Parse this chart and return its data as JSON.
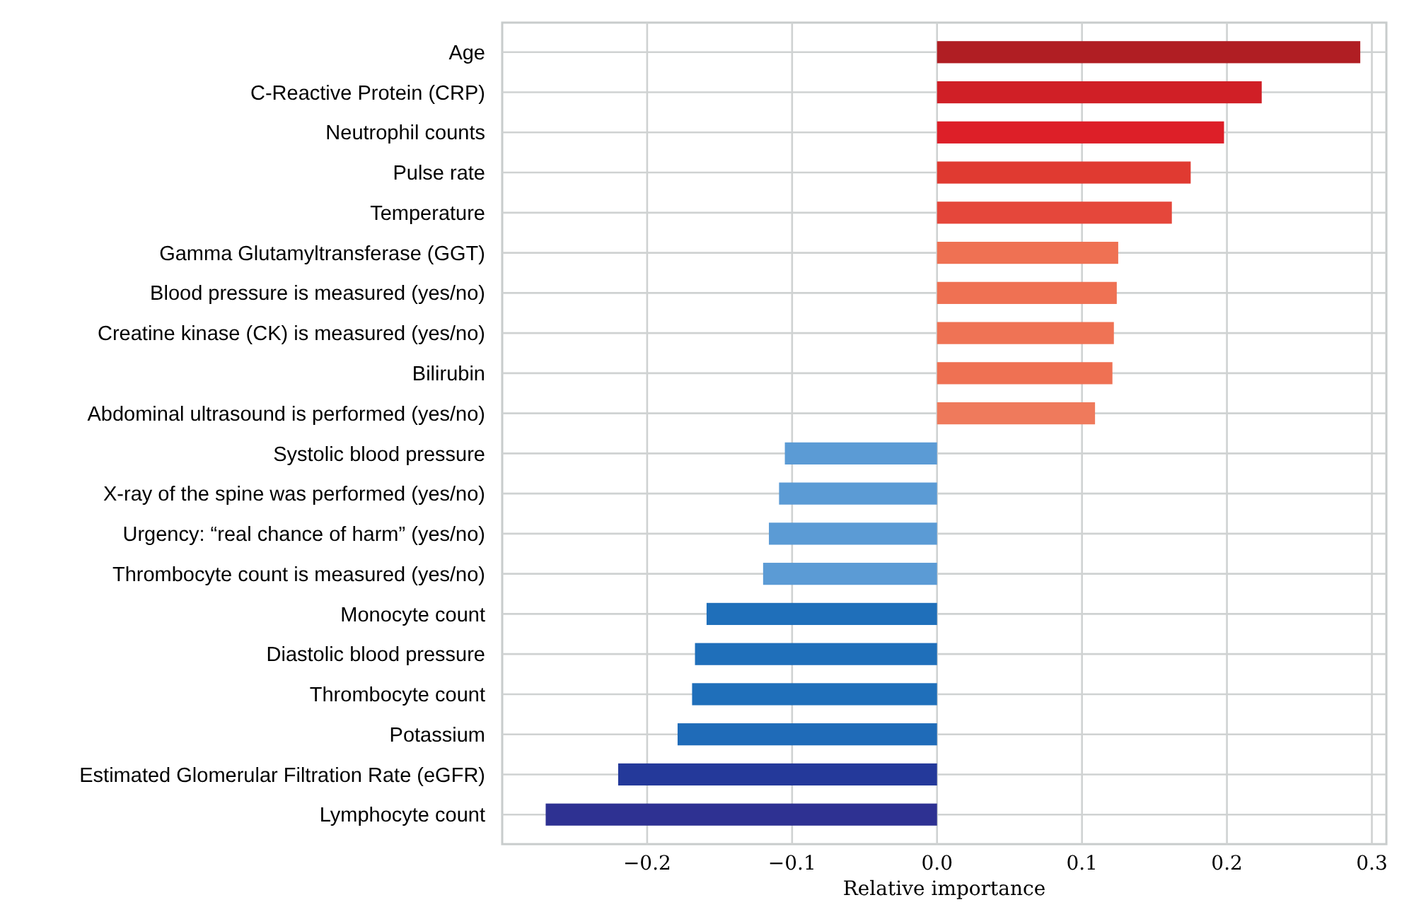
{
  "chart_data": {
    "type": "bar",
    "orientation": "horizontal",
    "xlabel": "Relative importance",
    "categories": [
      "Age",
      "C-Reactive Protein (CRP)",
      "Neutrophil counts",
      "Pulse rate",
      "Temperature",
      "Gamma Glutamyltransferase (GGT)",
      "Blood pressure is measured (yes/no)",
      "Creatine kinase (CK) is measured (yes/no)",
      "Bilirubin",
      "Abdominal ultrasound is performed (yes/no)",
      "Systolic blood pressure",
      "X-ray of the spine was performed (yes/no)",
      "Urgency: “real chance of harm” (yes/no)",
      "Thrombocyte count is measured (yes/no)",
      "Monocyte count",
      "Diastolic blood pressure",
      "Thrombocyte count",
      "Potassium",
      "Estimated Glomerular Filtration Rate (eGFR)",
      "Lymphocyte count"
    ],
    "values": [
      0.292,
      0.224,
      0.198,
      0.175,
      0.162,
      0.125,
      0.124,
      0.122,
      0.121,
      0.109,
      -0.105,
      -0.109,
      -0.116,
      -0.12,
      -0.159,
      -0.167,
      -0.169,
      -0.179,
      -0.22,
      -0.27
    ],
    "colors": [
      "#b01e23",
      "#d01f26",
      "#dd1f28",
      "#e03a31",
      "#e5473b",
      "#ef7153",
      "#ef7153",
      "#ef7355",
      "#ef7153",
      "#ef7a5c",
      "#5b9bd5",
      "#5b9bd5",
      "#5b9bd5",
      "#5b9bd5",
      "#1f6fba",
      "#1f6fba",
      "#1f6fba",
      "#1f6bb8",
      "#24399a",
      "#2e3192"
    ],
    "xlim": [
      -0.3,
      0.31
    ],
    "xticks": [
      {
        "value": -0.2,
        "label": "−0.2"
      },
      {
        "value": -0.1,
        "label": "−0.1"
      },
      {
        "value": 0,
        "label": "0.0"
      },
      {
        "value": 0.1,
        "label": "0.1"
      },
      {
        "value": 0.2,
        "label": "0.2"
      },
      {
        "value": 0.3,
        "label": "0.3"
      }
    ],
    "grid": true
  }
}
